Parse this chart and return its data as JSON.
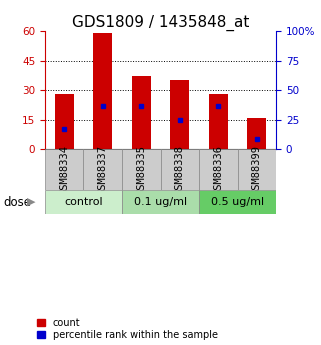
{
  "title": "GDS1809 / 1435848_at",
  "samples": [
    "GSM88334",
    "GSM88337",
    "GSM88335",
    "GSM88338",
    "GSM88336",
    "GSM88399"
  ],
  "bar_heights": [
    28,
    59,
    37,
    35,
    28,
    16
  ],
  "blue_marker_y": [
    10,
    22,
    22,
    15,
    22,
    5
  ],
  "bar_color": "#cc0000",
  "blue_color": "#0000cc",
  "left_ylim": [
    0,
    60
  ],
  "right_ylim": [
    0,
    100
  ],
  "left_yticks": [
    0,
    15,
    30,
    45,
    60
  ],
  "right_yticks": [
    0,
    25,
    50,
    75,
    100
  ],
  "right_yticklabels": [
    "0",
    "25",
    "50",
    "75",
    "100%"
  ],
  "grid_lines_at": [
    15,
    30,
    45
  ],
  "groups": [
    {
      "label": "control",
      "indices": [
        0,
        1
      ],
      "color": "#cceecc"
    },
    {
      "label": "0.1 ug/ml",
      "indices": [
        2,
        3
      ],
      "color": "#aaddaa"
    },
    {
      "label": "0.5 ug/ml",
      "indices": [
        4,
        5
      ],
      "color": "#66cc66"
    }
  ],
  "dose_label": "dose",
  "legend_count_label": "count",
  "legend_pct_label": "percentile rank within the sample",
  "bar_width": 0.5,
  "background_color": "#ffffff",
  "sample_box_color": "#cccccc",
  "title_fontsize": 11,
  "tick_fontsize": 7.5,
  "label_fontsize": 8.5,
  "group_label_fontsize": 8
}
